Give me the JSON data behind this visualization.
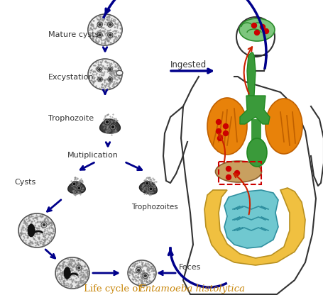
{
  "title_plain": "Life cycle of ",
  "title_italic": "Entamoeba histolytica",
  "title_color": "#c8860a",
  "arrow_color": "#00008B",
  "bg_color": "#ffffff",
  "labels": {
    "mature_cysts": "Mature cysts",
    "excystation": "Excystation",
    "trophozoite": "Trophozoite",
    "mutiplication": "Mutiplication",
    "cysts": "Cysts",
    "trophozoites": "Trophozoites",
    "feces": "Feces",
    "ingested": "Ingested"
  },
  "body_outline_color": "#333333",
  "brain_color": "#7dc67d",
  "lungs_color": "#e8820a",
  "intestine_color": "#f0c040",
  "small_intestine_color": "#70c8d0",
  "liver_color": "#c8a060",
  "esophagus_color": "#3a9a3a",
  "red_dot_color": "#cc0000",
  "red_arrow_color": "#cc2200",
  "dashed_color": "#cc0000"
}
